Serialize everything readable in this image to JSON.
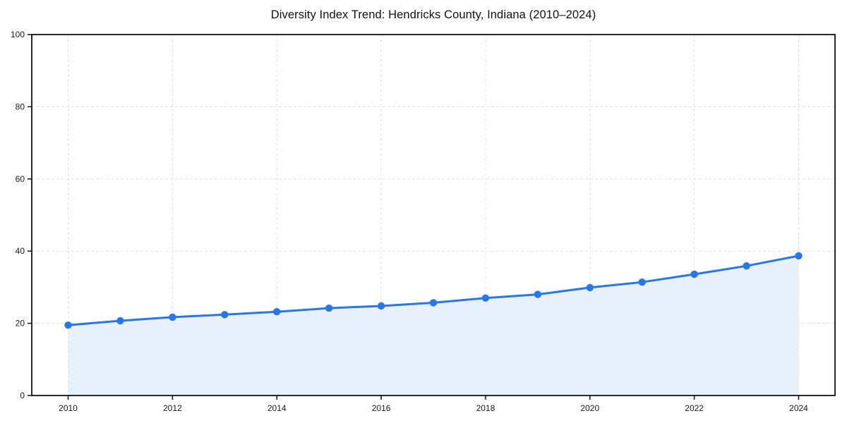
{
  "chart_data": {
    "type": "line",
    "title": "Diversity Index Trend: Hendricks County, Indiana (2010–2024)",
    "x": [
      2010,
      2011,
      2012,
      2013,
      2014,
      2015,
      2016,
      2017,
      2018,
      2019,
      2020,
      2021,
      2022,
      2023,
      2024
    ],
    "values": [
      19.5,
      20.7,
      21.7,
      22.4,
      23.2,
      24.2,
      24.8,
      25.7,
      27.0,
      28.0,
      29.9,
      31.4,
      33.6,
      35.9,
      38.7
    ],
    "xlabel": "",
    "ylabel": "",
    "xtick_labels": [
      "2010",
      "2012",
      "2014",
      "2016",
      "2018",
      "2020",
      "2022",
      "2024"
    ],
    "xticks": [
      2010,
      2012,
      2014,
      2016,
      2018,
      2020,
      2022,
      2024
    ],
    "ytick_labels": [
      "0",
      "20",
      "40",
      "60",
      "80",
      "100"
    ],
    "yticks": [
      0,
      20,
      40,
      60,
      80,
      100
    ],
    "ylim": [
      0,
      100
    ],
    "grid": true,
    "grid_style": "dashed",
    "legend_position": "none",
    "colors": {
      "line": "#2777ec",
      "marker": "#2777ec",
      "area_fill": "#e8f0fc",
      "gridline": "#e1e1e1",
      "spine": "#111111",
      "text": "#1a1a1a"
    }
  }
}
